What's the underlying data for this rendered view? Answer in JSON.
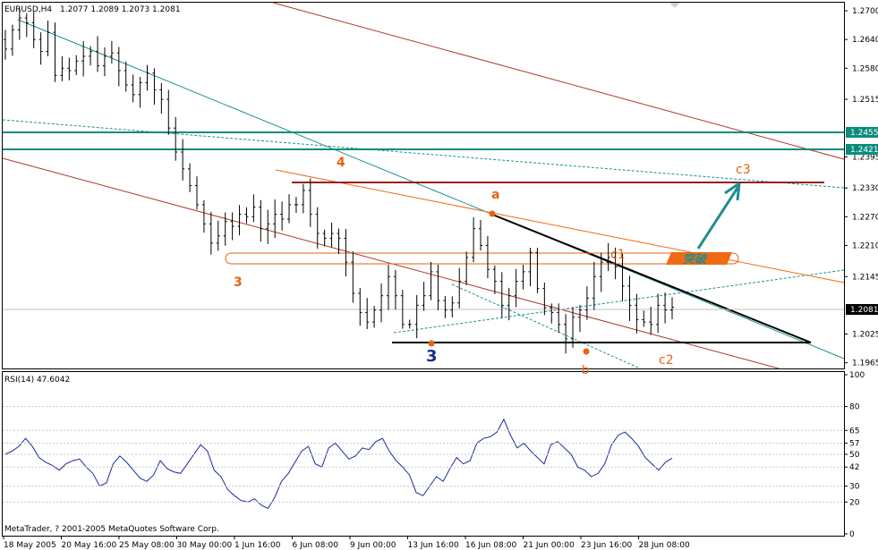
{
  "chart_data": [
    {
      "type": "candlestick",
      "title": "EURUSD,H4",
      "ohlc_header": "1.2077 1.2089 1.2073 1.2081",
      "copyright": "MetaTrader, ? 2001-2005 MetaQuotes Software Corp.",
      "x_tick_labels": [
        "18 May 2005",
        "20 May 16:00",
        "25 May 08:00",
        "30 May 00:00",
        "1 Jun 16:00",
        "6 Jun 08:00",
        "9 Jun 00:00",
        "13 Jun 16:00",
        "16 Jun 08:00",
        "21 Jun 00:00",
        "23 Jun 16:00",
        "28 Jun 08:00"
      ],
      "y_tick_labels": [
        "1.2700",
        "1.2640",
        "1.2580",
        "1.2515",
        "1.2455",
        "1.2421",
        "1.2395",
        "1.2330",
        "1.2270",
        "1.2210",
        "1.2145",
        "1.2081",
        "1.2025",
        "1.1965"
      ],
      "ylim": [
        1.1955,
        1.2715
      ],
      "current_price": 1.2081,
      "levels": [
        {
          "label": "1.2455",
          "value": 1.2455,
          "color": "#0a8c7d"
        },
        {
          "label": "1.2421",
          "value": 1.2421,
          "color": "#0a8c7d"
        }
      ],
      "wave_labels": [
        {
          "text": "4",
          "color": "#e8620e"
        },
        {
          "text": "3",
          "color": "#e8620e"
        },
        {
          "text": "3",
          "color": "#1d2a80"
        },
        {
          "text": "a",
          "color": "#e8620e"
        },
        {
          "text": "b",
          "color": "#e8620e"
        },
        {
          "text": "c1",
          "color": "#e8620e"
        },
        {
          "text": "c2",
          "color": "#e8620e"
        },
        {
          "text": "c3",
          "color": "#e8620e"
        }
      ],
      "breakout_label": "突破",
      "close_series": [
        1.262,
        1.266,
        1.2685,
        1.2675,
        1.264,
        1.2615,
        1.2655,
        1.2565,
        1.258,
        1.2575,
        1.2595,
        1.2605,
        1.2615,
        1.2585,
        1.2605,
        1.2612,
        1.2575,
        1.2545,
        1.2525,
        1.255,
        1.257,
        1.2535,
        1.2515,
        1.2455,
        1.2405,
        1.237,
        1.2335,
        1.2295,
        1.2255,
        1.2215,
        1.223,
        1.226,
        1.225,
        1.2275,
        1.227,
        1.229,
        1.2245,
        1.2255,
        1.2275,
        1.2265,
        1.2295,
        1.2295,
        1.2325,
        1.2275,
        1.2235,
        1.2225,
        1.2235,
        1.2225,
        1.2175,
        1.211,
        1.207,
        1.205,
        1.2075,
        1.2105,
        1.2145,
        1.2105,
        1.2045,
        1.2045,
        1.2085,
        1.2105,
        1.2155,
        1.2095,
        1.2075,
        1.209,
        1.2135,
        1.2185,
        1.2245,
        1.221,
        1.216,
        1.2135,
        1.2085,
        1.2105,
        1.2135,
        1.2155,
        1.2195,
        1.212,
        1.208,
        1.207,
        1.2045,
        1.2015,
        1.206,
        1.2075,
        1.21,
        1.2145,
        1.2175,
        1.2185,
        1.2165,
        1.2125,
        1.2085,
        1.2055,
        1.205,
        1.2045,
        1.2085,
        1.2075,
        1.2081
      ]
    },
    {
      "type": "line",
      "title": "RSI(14) 47.6042",
      "y_tick_labels": [
        "100",
        "80",
        "65",
        "57",
        "50",
        "42",
        "30",
        "20",
        "0"
      ],
      "ylim": [
        0,
        100
      ],
      "values": [
        50,
        52,
        55,
        60,
        55,
        48,
        45,
        43,
        40,
        44,
        46,
        47,
        42,
        38,
        30,
        32,
        44,
        49,
        45,
        40,
        35,
        33,
        37,
        46,
        41,
        39,
        38,
        44,
        50,
        56,
        52,
        40,
        36,
        28,
        24,
        21,
        20,
        22,
        18,
        16,
        23,
        33,
        38,
        45,
        52,
        55,
        44,
        42,
        54,
        57,
        52,
        47,
        49,
        54,
        53,
        58,
        60,
        52,
        46,
        42,
        37,
        26,
        24,
        30,
        36,
        33,
        41,
        48,
        44,
        46,
        57,
        60,
        61,
        64,
        72,
        62,
        54,
        57,
        52,
        48,
        44,
        56,
        58,
        54,
        50,
        42,
        40,
        36,
        38,
        44,
        56,
        62,
        64,
        60,
        55,
        48,
        44,
        40,
        45,
        47.6
      ]
    }
  ]
}
